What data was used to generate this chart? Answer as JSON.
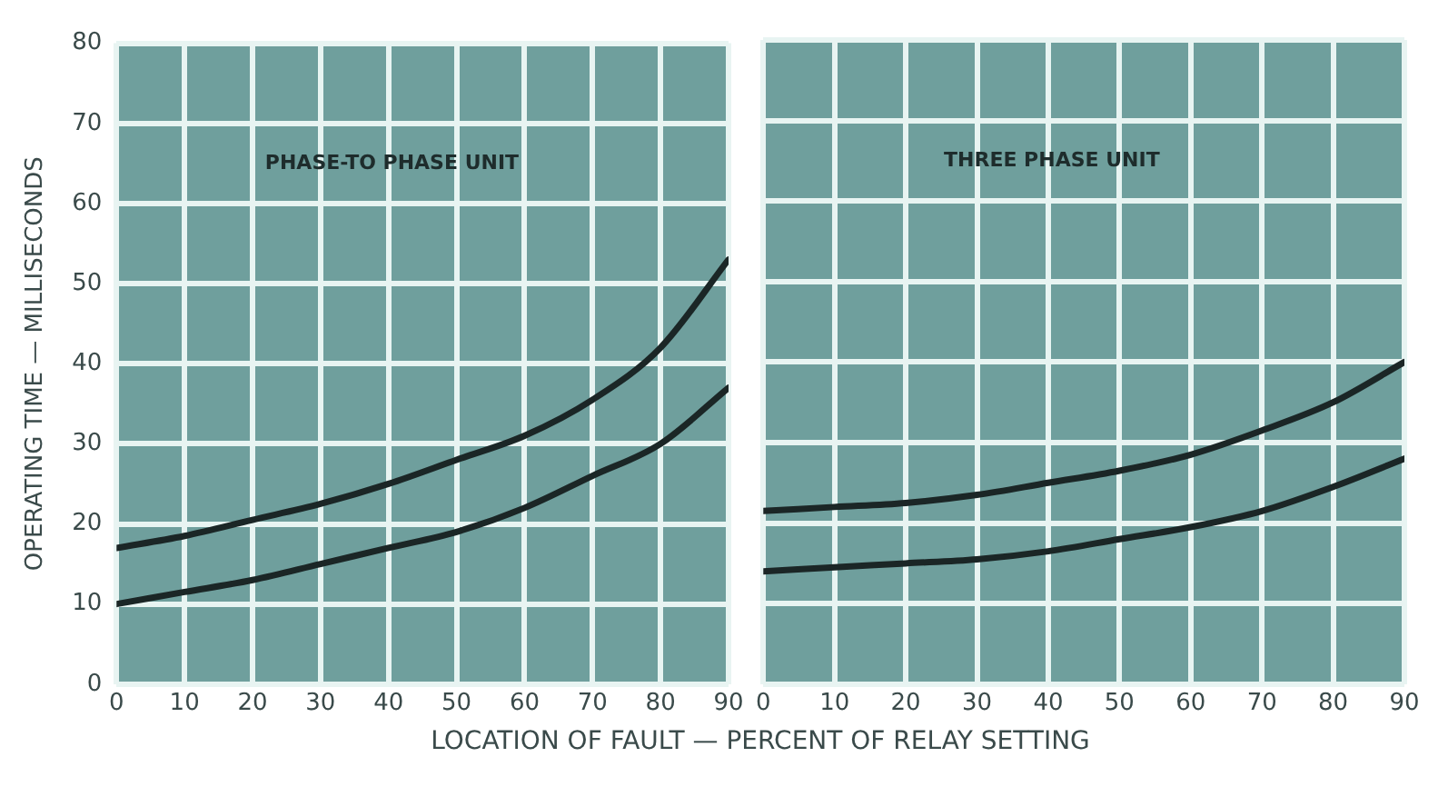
{
  "chart_data": [
    {
      "type": "line",
      "xlabel": "LOCATION OF FAULT — PERCENT OF RELAY SETTING",
      "ylabel": "OPERATING TIME — MILLISECONDS",
      "annotations": [
        "PHASE-TO PHASE UNIT"
      ],
      "x": [
        0,
        10,
        20,
        30,
        40,
        50,
        60,
        70,
        80,
        90
      ],
      "series": [
        {
          "color": "#1b2626",
          "values": [
            17,
            18.5,
            20.5,
            22.5,
            25,
            28,
            31,
            35.5,
            42,
            53
          ]
        },
        {
          "color": "#1b2626",
          "values": [
            10,
            11.5,
            13,
            15,
            17,
            19,
            22,
            26,
            30,
            37
          ]
        }
      ],
      "xlim": [
        0,
        90
      ],
      "xticks": [
        0,
        10,
        20,
        30,
        40,
        50,
        60,
        70,
        80,
        90
      ],
      "ylim": [
        0,
        80
      ],
      "yticks": [
        0,
        10,
        20,
        30,
        40,
        50,
        60,
        70,
        80
      ],
      "grid": true,
      "legend": false,
      "marker": "none",
      "line_style": "solid"
    },
    {
      "type": "line",
      "annotations": [
        "THREE PHASE UNIT"
      ],
      "x": [
        0,
        10,
        20,
        30,
        40,
        50,
        60,
        70,
        80,
        90
      ],
      "series": [
        {
          "color": "#1b2626",
          "values": [
            21.5,
            22,
            22.5,
            23.5,
            25,
            26.5,
            28.5,
            31.5,
            35,
            40
          ]
        },
        {
          "color": "#1b2626",
          "values": [
            14,
            14.5,
            15,
            15.5,
            16.5,
            18,
            19.5,
            21.5,
            24.5,
            28
          ]
        }
      ],
      "xlim": [
        0,
        90
      ],
      "xticks": [
        0,
        10,
        20,
        30,
        40,
        50,
        60,
        70,
        80,
        90
      ],
      "ylim": [
        0,
        80
      ],
      "yticks": [
        0,
        10,
        20,
        30,
        40,
        50,
        60,
        70,
        80
      ],
      "grid": true,
      "legend": false,
      "marker": "none",
      "line_style": "solid",
      "tick_labels": "x"
    }
  ]
}
